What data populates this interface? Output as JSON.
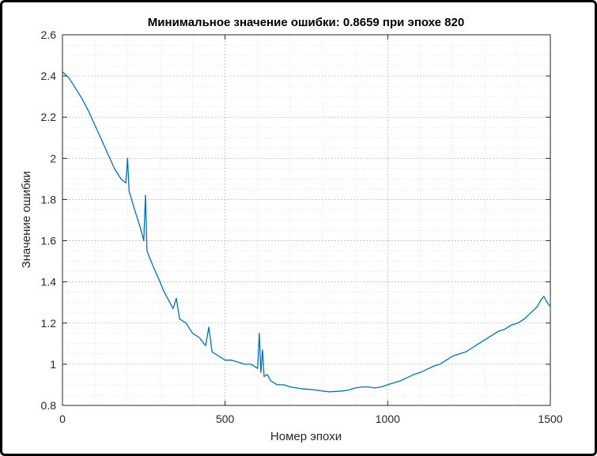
{
  "chart_data": {
    "type": "line",
    "title": "Минимальное значение ошибки: 0.8659 при эпохе 820",
    "xlabel": "Номер эпохи",
    "ylabel": "Значение ошибки",
    "xlim": [
      0,
      1500
    ],
    "ylim": [
      0.8,
      2.6
    ],
    "xticks": [
      0,
      500,
      1000,
      1500
    ],
    "yticks": [
      0.8,
      1,
      1.2,
      1.4,
      1.6,
      1.8,
      2,
      2.2,
      2.4,
      2.6
    ],
    "xtick_labels": [
      "0",
      "500",
      "1000",
      "1500"
    ],
    "ytick_labels": [
      "0.8",
      "1",
      "1.2",
      "1.4",
      "1.6",
      "1.8",
      "2",
      "2.2",
      "2.4",
      "2.6"
    ],
    "grid": true,
    "minor_grid": true,
    "line_color": "#0072BD",
    "series": [
      {
        "x": [
          0,
          20,
          40,
          60,
          80,
          100,
          120,
          140,
          160,
          180,
          195,
          200,
          205,
          220,
          240,
          250,
          255,
          260,
          280,
          300,
          310,
          320,
          340,
          350,
          360,
          380,
          400,
          420,
          440,
          450,
          460,
          480,
          500,
          520,
          540,
          560,
          580,
          600,
          605,
          610,
          615,
          620,
          630,
          640,
          660,
          680,
          700,
          720,
          740,
          760,
          780,
          800,
          820,
          840,
          860,
          880,
          900,
          920,
          940,
          960,
          980,
          1000,
          1020,
          1040,
          1060,
          1080,
          1100,
          1120,
          1140,
          1160,
          1180,
          1200,
          1220,
          1240,
          1260,
          1280,
          1300,
          1320,
          1340,
          1360,
          1380,
          1400,
          1420,
          1440,
          1460,
          1470,
          1480,
          1490,
          1500
        ],
        "y": [
          2.42,
          2.39,
          2.34,
          2.29,
          2.23,
          2.16,
          2.09,
          2.02,
          1.95,
          1.9,
          1.88,
          2.0,
          1.84,
          1.76,
          1.66,
          1.6,
          1.82,
          1.55,
          1.47,
          1.4,
          1.36,
          1.33,
          1.27,
          1.32,
          1.22,
          1.2,
          1.15,
          1.13,
          1.09,
          1.18,
          1.06,
          1.04,
          1.02,
          1.02,
          1.01,
          1.0,
          1.0,
          0.98,
          1.15,
          0.96,
          1.07,
          0.94,
          0.95,
          0.92,
          0.9,
          0.9,
          0.89,
          0.885,
          0.88,
          0.878,
          0.875,
          0.87,
          0.866,
          0.868,
          0.87,
          0.875,
          0.885,
          0.89,
          0.89,
          0.885,
          0.89,
          0.9,
          0.91,
          0.92,
          0.935,
          0.95,
          0.96,
          0.975,
          0.99,
          1.0,
          1.02,
          1.04,
          1.05,
          1.06,
          1.08,
          1.1,
          1.12,
          1.14,
          1.16,
          1.17,
          1.19,
          1.2,
          1.22,
          1.25,
          1.28,
          1.31,
          1.33,
          1.3,
          1.28
        ]
      }
    ]
  }
}
